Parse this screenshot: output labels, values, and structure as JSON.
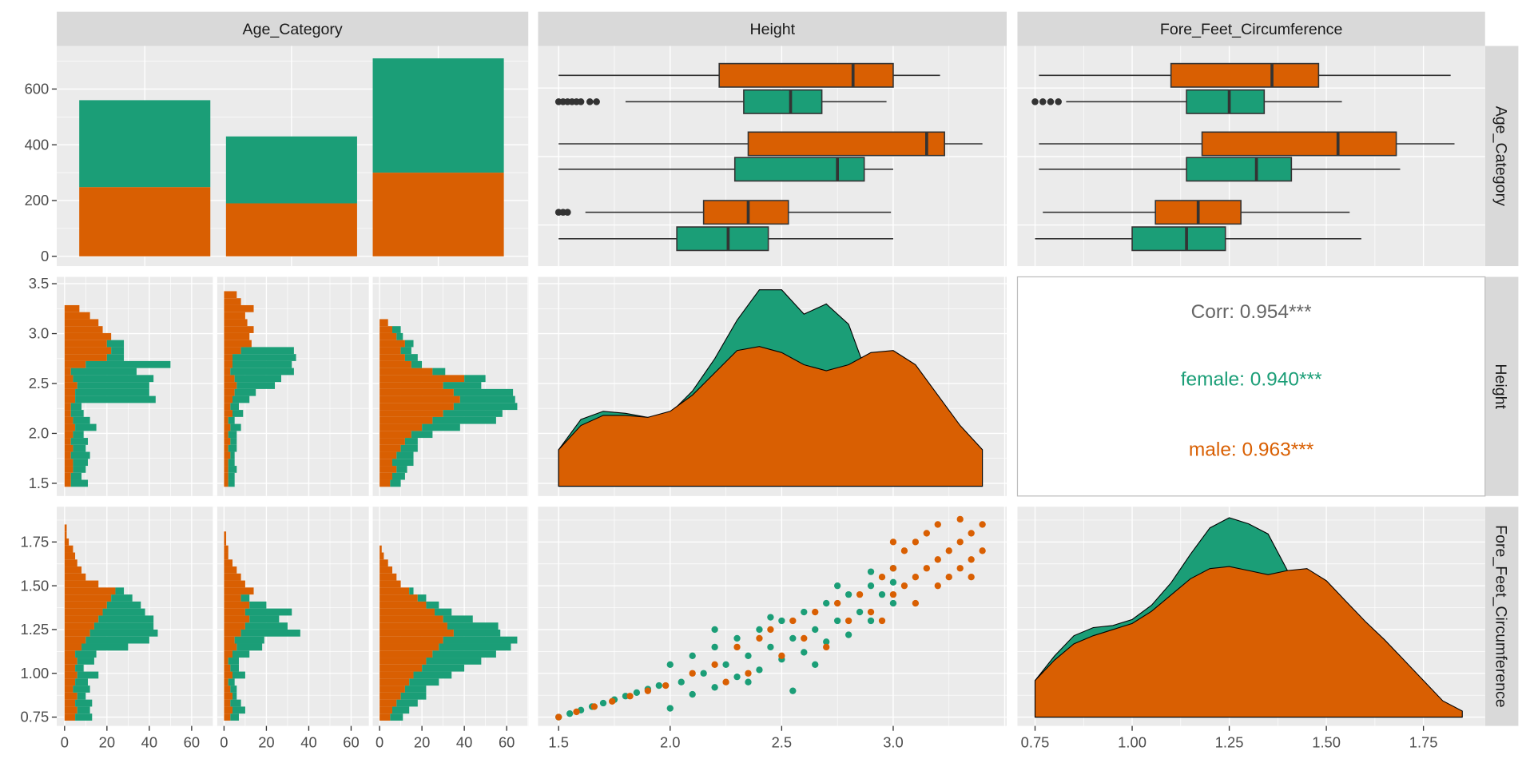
{
  "chart_data": {
    "type": "scatter-matrix",
    "colors": {
      "female": "#1B9E77",
      "male": "#D95F02",
      "panel_bg": "#EBEBEB",
      "strip_bg": "#D9D9D9"
    },
    "strips": {
      "columns": [
        "Age_Category",
        "Height",
        "Fore_Feet_Circumference"
      ],
      "rows": [
        "Age_Category",
        "Height",
        "Fore_Feet_Circumference"
      ]
    },
    "axes": {
      "count_ticks": [
        "0",
        "200",
        "400",
        "600"
      ],
      "height_ticks": [
        "1.5",
        "2.0",
        "2.5",
        "3.0",
        "3.5"
      ],
      "height_xticks": [
        "1.5",
        "2.0",
        "2.5",
        "3.0"
      ],
      "ffc_ticks": [
        "0.75",
        "1.00",
        "1.25",
        "1.50",
        "1.75"
      ],
      "hist_ticks": [
        "0",
        "20",
        "40",
        "60"
      ]
    },
    "age_bars": {
      "male_counts": [
        248,
        190,
        300
      ],
      "female_counts": [
        312,
        240,
        410
      ],
      "ylim": [
        0,
        740
      ]
    },
    "boxplots": {
      "height": [
        {
          "cat": 1,
          "group": "male",
          "min": 1.5,
          "q1": 2.22,
          "median": 2.82,
          "q3": 3.0,
          "max": 3.21,
          "outliers": []
        },
        {
          "cat": 1,
          "group": "female",
          "min": 1.8,
          "q1": 2.33,
          "median": 2.54,
          "q3": 2.68,
          "max": 2.97,
          "outliers": [
            1.5,
            1.52,
            1.54,
            1.56,
            1.58,
            1.6,
            1.64,
            1.67
          ]
        },
        {
          "cat": 2,
          "group": "male",
          "min": 1.5,
          "q1": 2.35,
          "median": 3.15,
          "q3": 3.23,
          "max": 3.4,
          "outliers": []
        },
        {
          "cat": 2,
          "group": "female",
          "min": 1.5,
          "q1": 2.29,
          "median": 2.75,
          "q3": 2.87,
          "max": 3.0,
          "outliers": []
        },
        {
          "cat": 3,
          "group": "male",
          "min": 1.62,
          "q1": 2.15,
          "median": 2.35,
          "q3": 2.53,
          "max": 2.99,
          "outliers": [
            1.5,
            1.52,
            1.54
          ]
        },
        {
          "cat": 3,
          "group": "female",
          "min": 1.5,
          "q1": 2.03,
          "median": 2.26,
          "q3": 2.44,
          "max": 3.0,
          "outliers": []
        }
      ],
      "ffc": [
        {
          "cat": 1,
          "group": "male",
          "min": 0.76,
          "q1": 1.1,
          "median": 1.36,
          "q3": 1.48,
          "max": 1.82,
          "outliers": []
        },
        {
          "cat": 1,
          "group": "female",
          "min": 0.83,
          "q1": 1.14,
          "median": 1.25,
          "q3": 1.34,
          "max": 1.54,
          "outliers": [
            0.75,
            0.77,
            0.79,
            0.81
          ]
        },
        {
          "cat": 2,
          "group": "male",
          "min": 0.76,
          "q1": 1.18,
          "median": 1.53,
          "q3": 1.68,
          "max": 1.83,
          "outliers": []
        },
        {
          "cat": 2,
          "group": "female",
          "min": 0.76,
          "q1": 1.14,
          "median": 1.32,
          "q3": 1.41,
          "max": 1.69,
          "outliers": []
        },
        {
          "cat": 3,
          "group": "male",
          "min": 0.77,
          "q1": 1.06,
          "median": 1.17,
          "q3": 1.28,
          "max": 1.56,
          "outliers": []
        },
        {
          "cat": 3,
          "group": "female",
          "min": 0.75,
          "q1": 1.0,
          "median": 1.14,
          "q3": 1.24,
          "max": 1.59,
          "outliers": []
        }
      ]
    },
    "histograms": {
      "height": {
        "bin_start": 1.5,
        "bin_width": 0.07,
        "facets": [
          {
            "male": [
              3,
              3,
              4,
              4,
              3,
              4,
              3,
              4,
              5,
              4,
              3,
              3,
              5,
              5,
              6,
              4,
              3,
              10,
              20,
              22,
              20,
              22,
              18,
              16,
              12,
              7,
              0,
              0
            ],
            "female": [
              8,
              5,
              6,
              7,
              9,
              6,
              8,
              5,
              10,
              8,
              6,
              5,
              38,
              35,
              34,
              38,
              31,
              40,
              8,
              6,
              8,
              0,
              0,
              0,
              0,
              0,
              0,
              0
            ]
          },
          {
            "male": [
              2,
              2,
              2,
              2,
              3,
              2,
              3,
              2,
              3,
              2,
              4,
              3,
              4,
              5,
              6,
              5,
              3,
              4,
              4,
              8,
              13,
              12,
              14,
              11,
              10,
              14,
              8,
              6
            ],
            "female": [
              3,
              3,
              4,
              3,
              2,
              4,
              3,
              4,
              5,
              3,
              5,
              4,
              8,
              10,
              18,
              22,
              30,
              28,
              30,
              25,
              0,
              0,
              0,
              0,
              0,
              0,
              0,
              0
            ]
          },
          {
            "male": [
              5,
              6,
              8,
              6,
              8,
              10,
              12,
              15,
              20,
              25,
              30,
              35,
              38,
              35,
              30,
              40,
              25,
              15,
              12,
              10,
              12,
              8,
              6,
              4,
              0,
              0,
              0,
              0
            ],
            "female": [
              5,
              6,
              5,
              10,
              8,
              8,
              6,
              10,
              18,
              30,
              28,
              30,
              26,
              28,
              18,
              10,
              6,
              5,
              6,
              5,
              4,
              3,
              4,
              0,
              0,
              0,
              0,
              0
            ]
          }
        ]
      },
      "ffc": {
        "bin_start": 0.75,
        "bin_width": 0.04,
        "facets": [
          {
            "male": [
              5,
              6,
              5,
              6,
              4,
              5,
              6,
              5,
              6,
              5,
              8,
              10,
              12,
              14,
              16,
              18,
              20,
              22,
              24,
              16,
              10,
              8,
              6,
              5,
              4,
              2,
              1,
              1
            ],
            "female": [
              8,
              6,
              8,
              4,
              8,
              6,
              10,
              4,
              8,
              10,
              22,
              30,
              32,
              28,
              26,
              20,
              16,
              10,
              4,
              0,
              0,
              0,
              0,
              0,
              0,
              0,
              0,
              0
            ]
          },
          {
            "male": [
              3,
              4,
              3,
              4,
              3,
              2,
              4,
              3,
              2,
              4,
              6,
              5,
              8,
              10,
              12,
              10,
              12,
              8,
              14,
              10,
              8,
              6,
              4,
              2,
              2,
              1,
              1,
              0
            ],
            "female": [
              4,
              6,
              5,
              2,
              3,
              3,
              6,
              4,
              5,
              8,
              12,
              14,
              28,
              20,
              14,
              22,
              8,
              4,
              0,
              0,
              0,
              0,
              0,
              0,
              0,
              0,
              0,
              0
            ]
          },
          {
            "male": [
              5,
              6,
              8,
              10,
              12,
              14,
              16,
              20,
              22,
              25,
              28,
              30,
              35,
              32,
              30,
              26,
              22,
              18,
              14,
              10,
              8,
              6,
              4,
              2,
              1,
              0,
              0,
              0
            ],
            "female": [
              6,
              8,
              10,
              12,
              10,
              14,
              18,
              20,
              26,
              30,
              34,
              35,
              22,
              24,
              14,
              8,
              6,
              4,
              2,
              0,
              0,
              0,
              0,
              0,
              0,
              0,
              0,
              0
            ]
          }
        ]
      }
    },
    "density": {
      "height": {
        "x": [
          1.5,
          1.6,
          1.7,
          1.8,
          1.9,
          2.0,
          2.1,
          2.2,
          2.3,
          2.4,
          2.5,
          2.6,
          2.7,
          2.8,
          2.9,
          3.0,
          3.1,
          3.2,
          3.3,
          3.4
        ],
        "female": [
          0.18,
          0.33,
          0.37,
          0.36,
          0.34,
          0.36,
          0.47,
          0.63,
          0.82,
          0.97,
          0.97,
          0.85,
          0.9,
          0.8,
          0.5,
          0.3,
          0.15,
          0.05,
          0.02,
          0.0
        ],
        "male": [
          0.18,
          0.3,
          0.35,
          0.35,
          0.34,
          0.37,
          0.45,
          0.56,
          0.67,
          0.69,
          0.66,
          0.6,
          0.57,
          0.6,
          0.66,
          0.67,
          0.6,
          0.45,
          0.3,
          0.18
        ]
      },
      "ffc": {
        "x": [
          0.75,
          0.8,
          0.85,
          0.9,
          0.95,
          1.0,
          1.05,
          1.1,
          1.15,
          1.2,
          1.25,
          1.3,
          1.35,
          1.4,
          1.45,
          1.5,
          1.55,
          1.6,
          1.65,
          1.7,
          1.75,
          1.8,
          1.85
        ],
        "female": [
          0.18,
          0.3,
          0.4,
          0.44,
          0.45,
          0.48,
          0.55,
          0.66,
          0.8,
          0.93,
          0.98,
          0.95,
          0.9,
          0.72,
          0.5,
          0.3,
          0.15,
          0.06,
          0.02,
          0.0,
          0.0,
          0.0,
          0.0
        ],
        "male": [
          0.18,
          0.28,
          0.36,
          0.4,
          0.43,
          0.46,
          0.52,
          0.6,
          0.68,
          0.73,
          0.74,
          0.72,
          0.7,
          0.72,
          0.73,
          0.67,
          0.57,
          0.47,
          0.38,
          0.28,
          0.18,
          0.08,
          0.03
        ]
      }
    },
    "scatter": {
      "female": [
        [
          1.5,
          0.75
        ],
        [
          1.55,
          0.77
        ],
        [
          1.6,
          0.79
        ],
        [
          1.65,
          0.81
        ],
        [
          1.7,
          0.83
        ],
        [
          1.75,
          0.85
        ],
        [
          1.8,
          0.87
        ],
        [
          1.85,
          0.89
        ],
        [
          1.9,
          0.91
        ],
        [
          1.95,
          0.93
        ],
        [
          2.0,
          0.8
        ],
        [
          2.0,
          1.05
        ],
        [
          2.05,
          0.95
        ],
        [
          2.1,
          1.1
        ],
        [
          2.1,
          0.88
        ],
        [
          2.15,
          1.0
        ],
        [
          2.2,
          1.15
        ],
        [
          2.2,
          0.92
        ],
        [
          2.25,
          1.05
        ],
        [
          2.3,
          1.2
        ],
        [
          2.3,
          0.98
        ],
        [
          2.35,
          1.1
        ],
        [
          2.4,
          1.25
        ],
        [
          2.4,
          1.02
        ],
        [
          2.45,
          1.15
        ],
        [
          2.5,
          1.3
        ],
        [
          2.5,
          1.08
        ],
        [
          2.55,
          1.2
        ],
        [
          2.6,
          1.35
        ],
        [
          2.6,
          1.12
        ],
        [
          2.65,
          1.25
        ],
        [
          2.7,
          1.4
        ],
        [
          2.7,
          1.18
        ],
        [
          2.75,
          1.3
        ],
        [
          2.8,
          1.45
        ],
        [
          2.8,
          1.22
        ],
        [
          2.85,
          1.35
        ],
        [
          2.9,
          1.5
        ],
        [
          2.9,
          1.3
        ],
        [
          2.95,
          1.45
        ],
        [
          3.0,
          1.6
        ],
        [
          3.0,
          1.4
        ],
        [
          2.55,
          0.9
        ],
        [
          2.45,
          1.32
        ],
        [
          2.35,
          0.95
        ],
        [
          2.65,
          1.05
        ],
        [
          2.75,
          1.5
        ],
        [
          2.2,
          1.25
        ],
        [
          2.9,
          1.58
        ],
        [
          3.0,
          1.52
        ]
      ],
      "male": [
        [
          1.5,
          0.75
        ],
        [
          1.58,
          0.78
        ],
        [
          1.66,
          0.81
        ],
        [
          1.74,
          0.84
        ],
        [
          1.82,
          0.87
        ],
        [
          1.9,
          0.9
        ],
        [
          1.98,
          0.93
        ],
        [
          2.1,
          1.0
        ],
        [
          2.2,
          1.05
        ],
        [
          2.3,
          1.15
        ],
        [
          2.35,
          1.0
        ],
        [
          2.4,
          1.2
        ],
        [
          2.5,
          1.1
        ],
        [
          2.55,
          1.3
        ],
        [
          2.6,
          1.2
        ],
        [
          2.65,
          1.35
        ],
        [
          2.7,
          1.15
        ],
        [
          2.75,
          1.4
        ],
        [
          2.8,
          1.3
        ],
        [
          2.85,
          1.45
        ],
        [
          2.9,
          1.35
        ],
        [
          2.95,
          1.55
        ],
        [
          3.0,
          1.45
        ],
        [
          3.0,
          1.6
        ],
        [
          3.05,
          1.5
        ],
        [
          3.05,
          1.7
        ],
        [
          3.1,
          1.55
        ],
        [
          3.1,
          1.75
        ],
        [
          3.15,
          1.6
        ],
        [
          3.15,
          1.8
        ],
        [
          3.2,
          1.65
        ],
        [
          3.2,
          1.85
        ],
        [
          3.25,
          1.7
        ],
        [
          3.25,
          1.55
        ],
        [
          3.3,
          1.75
        ],
        [
          3.3,
          1.6
        ],
        [
          3.35,
          1.8
        ],
        [
          3.35,
          1.65
        ],
        [
          3.4,
          1.85
        ],
        [
          3.4,
          1.7
        ],
        [
          3.3,
          1.88
        ],
        [
          3.1,
          1.4
        ],
        [
          2.95,
          1.3
        ],
        [
          3.2,
          1.5
        ],
        [
          2.45,
          1.25
        ],
        [
          2.25,
          0.95
        ],
        [
          3.35,
          1.55
        ],
        [
          3.0,
          1.75
        ]
      ]
    },
    "correlation": {
      "overall": "Corr: 0.954***",
      "female": "female: 0.940***",
      "male": "male: 0.963***"
    }
  }
}
